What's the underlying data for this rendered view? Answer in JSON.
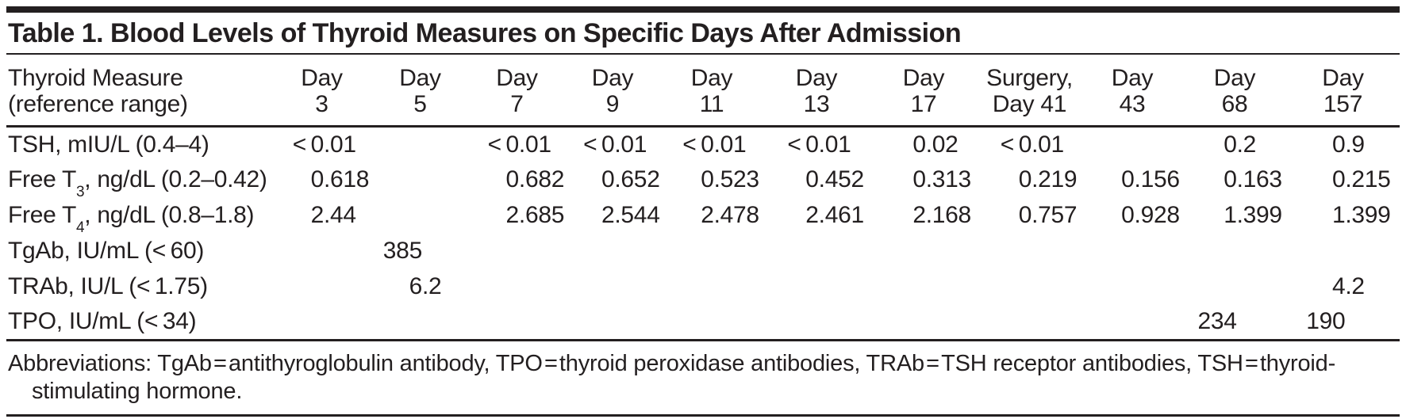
{
  "title": "Table 1. Blood Levels of Thyroid Measures on Specific Days After Admission",
  "colors": {
    "text": "#231f20",
    "rule": "#231f20",
    "background": "#ffffff"
  },
  "table": {
    "label_header": {
      "line1": "Thyroid Measure",
      "line2": "(reference range)"
    },
    "columns": [
      {
        "line1": "Day",
        "line2": "3"
      },
      {
        "line1": "Day",
        "line2": "5"
      },
      {
        "line1": "Day",
        "line2": "7"
      },
      {
        "line1": "Day",
        "line2": "9"
      },
      {
        "line1": "Day",
        "line2": "11"
      },
      {
        "line1": "Day",
        "line2": "13"
      },
      {
        "line1": "Day",
        "line2": "17"
      },
      {
        "line1": "Surgery,",
        "line2": "Day 41"
      },
      {
        "line1": "Day",
        "line2": "43"
      },
      {
        "line1": "Day",
        "line2": "68"
      },
      {
        "line1": "Day",
        "line2": "157"
      }
    ],
    "rows": [
      {
        "label": {
          "pre": "TSH, mIU/L (0.4–4)",
          "sub": "",
          "post": ""
        },
        "values": [
          "< 0.01",
          "",
          "< 0.01",
          "< 0.01",
          "< 0.01",
          "< 0.01",
          "0.02",
          "< 0.01",
          "",
          "0.2",
          "0.9"
        ]
      },
      {
        "label": {
          "pre": "Free T",
          "sub": "3",
          "post": ", ng/dL (0.2–0.42)"
        },
        "values": [
          "0.618",
          "",
          "0.682",
          "0.652",
          "0.523",
          "0.452",
          "0.313",
          "0.219",
          "0.156",
          "0.163",
          "0.215"
        ]
      },
      {
        "label": {
          "pre": "Free T",
          "sub": "4",
          "post": ", ng/dL (0.8–1.8)"
        },
        "values": [
          "2.44",
          "",
          "2.685",
          "2.544",
          "2.478",
          "2.461",
          "2.168",
          "0.757",
          "0.928",
          "1.399",
          "1.399"
        ]
      },
      {
        "label": {
          "pre": "TgAb, IU/mL (< 60)",
          "sub": "",
          "post": ""
        },
        "values": [
          "",
          "385",
          "",
          "",
          "",
          "",
          "",
          "",
          "",
          "",
          ""
        ]
      },
      {
        "label": {
          "pre": "TRAb, IU/L (< 1.75)",
          "sub": "",
          "post": ""
        },
        "values": [
          "",
          "6.2",
          "",
          "",
          "",
          "",
          "",
          "",
          "",
          "",
          "4.2"
        ]
      },
      {
        "label": {
          "pre": "TPO, IU/mL (< 34)",
          "sub": "",
          "post": ""
        },
        "values": [
          "",
          "",
          "",
          "",
          "",
          "",
          "",
          "",
          "",
          "234",
          "190"
        ]
      }
    ]
  },
  "footnote": {
    "line1": "Abbreviations: TgAb = antithyroglobulin antibody, TPO = thyroid peroxidase antibodies, TRAb = TSH receptor antibodies, TSH = thyroid-",
    "line2": "stimulating hormone."
  }
}
